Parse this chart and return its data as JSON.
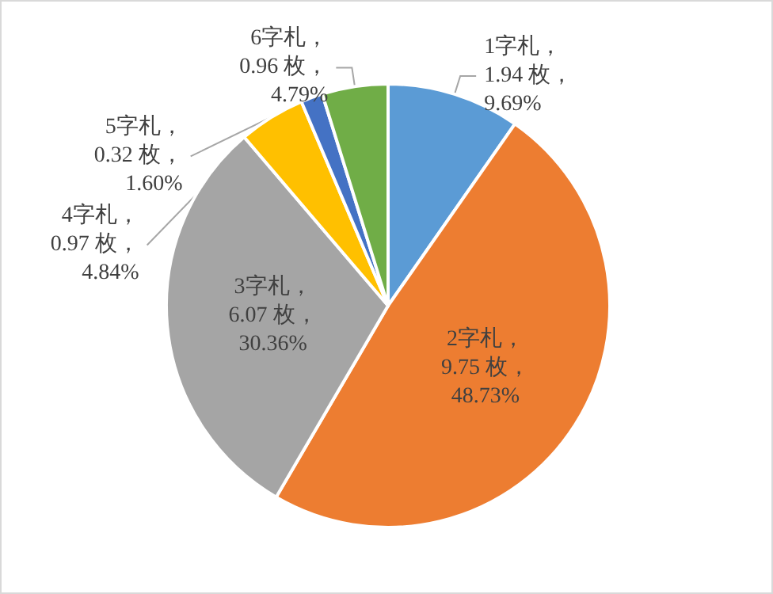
{
  "chart_data": {
    "type": "pie",
    "categories": [
      "1字札",
      "2字札",
      "3字札",
      "4字札",
      "5字札",
      "6字札"
    ],
    "values": [
      1.94,
      9.75,
      6.07,
      0.97,
      0.32,
      0.96
    ],
    "colors": [
      "#5b9bd5",
      "#ed7d31",
      "#a5a5a5",
      "#ffc000",
      "#4472c4",
      "#70ad47"
    ],
    "value_labels": [
      "，\n1.94 枚，\n9.69%",
      "，\n9.75 枚，\n48.73%",
      "，\n6.07 枚，\n30.36%",
      "，\n0.97 枚，\n4.84%",
      "，\n0.32 枚，\n1.60%",
      "，\n0.96 枚，\n4.79%"
    ],
    "legend": false
  }
}
